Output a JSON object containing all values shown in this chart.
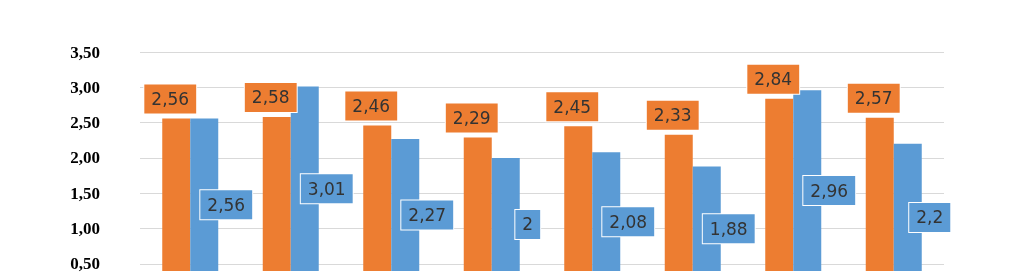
{
  "chart_data": {
    "type": "bar",
    "categories": [
      null,
      null,
      null,
      null,
      null,
      null,
      null,
      null
    ],
    "series": [
      {
        "color": "#ed7d31",
        "values": [
          2.56,
          2.58,
          2.46,
          2.29,
          2.45,
          2.33,
          2.84,
          2.57
        ],
        "value_labels": [
          "2,56",
          "2,58",
          "2,46",
          "2,29",
          "2,45",
          "2,33",
          "2,84",
          "2,57"
        ]
      },
      {
        "color": "#5b9bd5",
        "values": [
          2.56,
          3.01,
          2.27,
          2,
          2.08,
          1.88,
          2.96,
          2.2
        ],
        "value_labels": [
          "2,56",
          "3,01",
          "2,27",
          "2",
          "2,08",
          "1,88",
          "2,96",
          "2,2"
        ]
      }
    ],
    "ylim": [
      0.4,
      3.5
    ],
    "yticks": [
      {
        "value": 0.5,
        "label": "0,50"
      },
      {
        "value": 1,
        "label": "1,00"
      },
      {
        "value": 1.5,
        "label": "1,50"
      },
      {
        "value": 2,
        "label": "2,00"
      },
      {
        "value": 2.5,
        "label": "2,50"
      },
      {
        "value": 3,
        "label": "3,00"
      },
      {
        "value": 3.5,
        "label": "3,50"
      }
    ],
    "grid": "y"
  }
}
